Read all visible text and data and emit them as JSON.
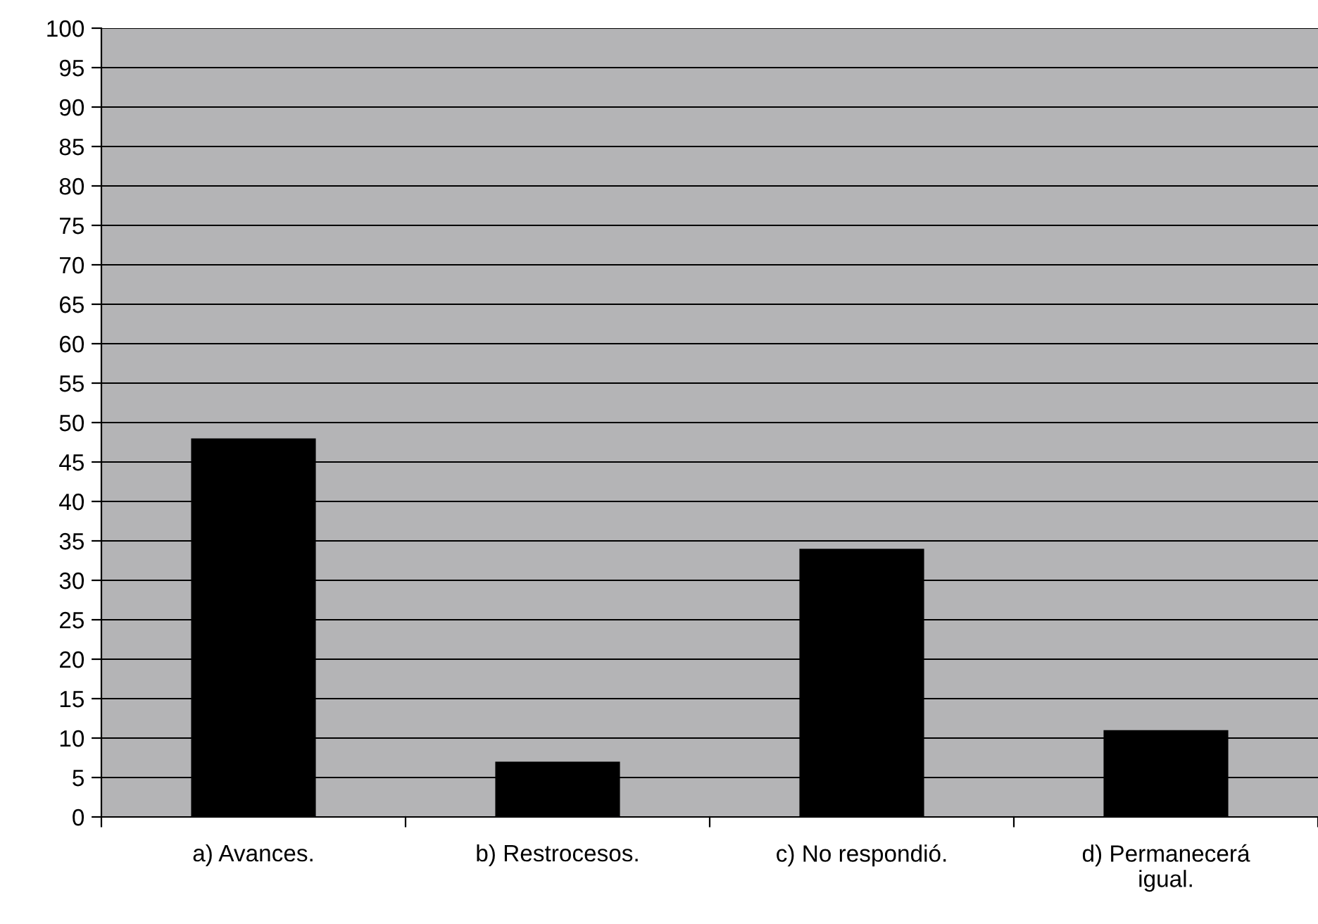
{
  "chart_data": {
    "type": "bar",
    "categories": [
      "a) Avances.",
      "b) Restrocesos.",
      "c) No respondió.",
      "d) Permanecerá\nigual."
    ],
    "series": [
      {
        "color": "#000000",
        "values": [
          48,
          7,
          34,
          11
        ]
      }
    ],
    "ylim": [
      0,
      100
    ],
    "yticks": [
      0,
      5,
      10,
      15,
      20,
      25,
      30,
      35,
      40,
      45,
      50,
      55,
      60,
      65,
      70,
      75,
      80,
      85,
      90,
      95,
      100
    ],
    "grid": "y",
    "legend": false
  }
}
